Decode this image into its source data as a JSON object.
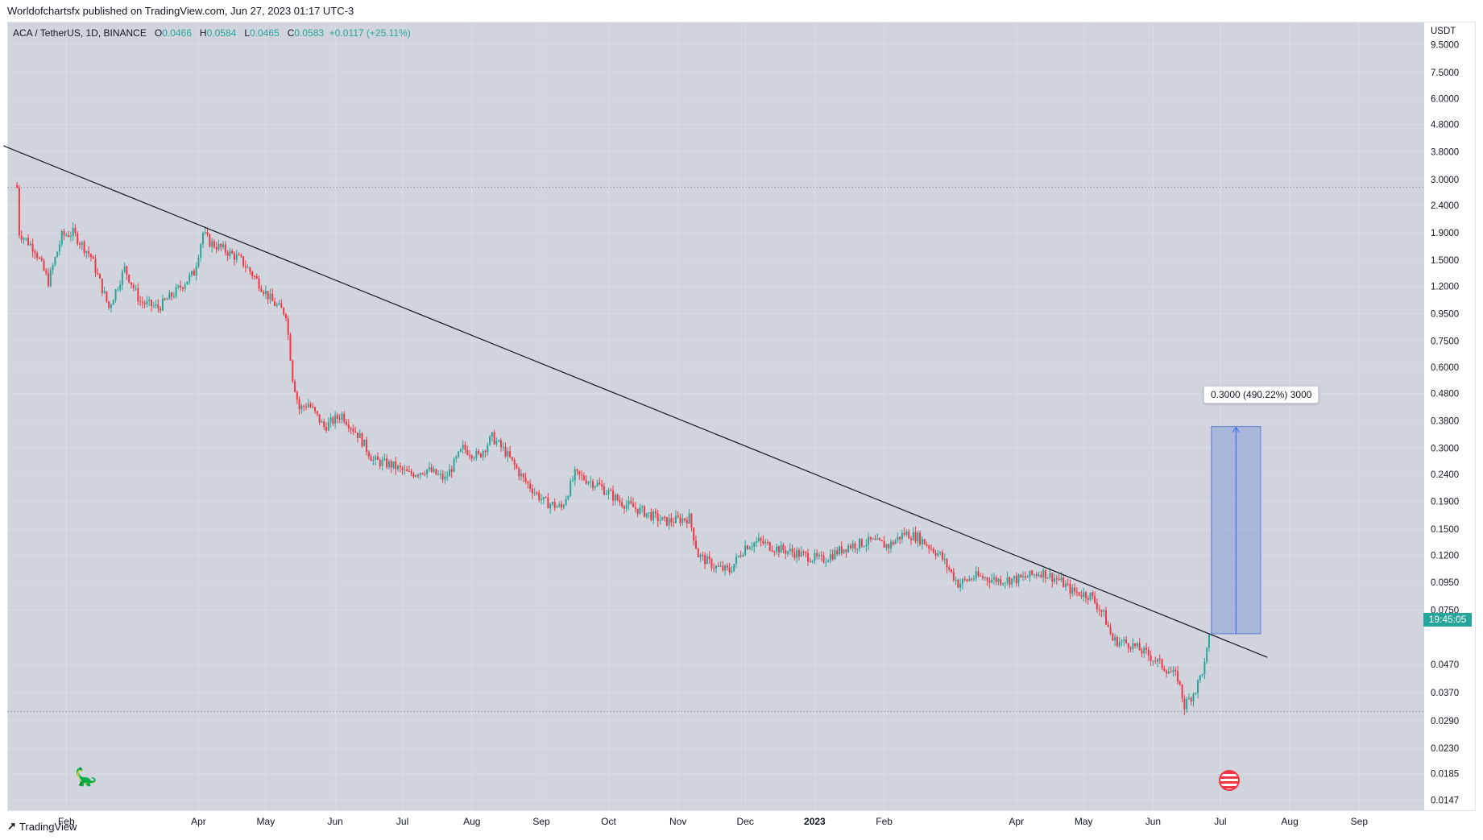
{
  "header": {
    "published_text": "Worldofchartsfx published on TradingView.com, Jun 27, 2023 01:17 UTC-3"
  },
  "symbol": {
    "name": "ACA / TetherUS, 1D, BINANCE",
    "open_label": "O",
    "open": "0.0466",
    "high_label": "H",
    "high": "0.0584",
    "low_label": "L",
    "low": "0.0465",
    "close_label": "C",
    "close": "0.0583",
    "change": "+0.0117 (+25.11%)"
  },
  "footer": {
    "brand": "TradingView"
  },
  "countdown": "19:45:05",
  "measure": {
    "label": "0.3000 (490.22%) 3000"
  },
  "colors": {
    "up": "#26a69a",
    "down": "#f23645",
    "trendline": "#131722",
    "measure_fill": "#5b7fd6",
    "grid": "#e0e3eb",
    "background": "#d1d4dc"
  },
  "chart_data": {
    "type": "candlestick",
    "title": "",
    "yscale": "log",
    "y_unit": "USDT",
    "y_ticks": [
      "9.5000",
      "7.5000",
      "6.0000",
      "4.8000",
      "3.8000",
      "3.0000",
      "2.4000",
      "1.9000",
      "1.5000",
      "1.2000",
      "0.9500",
      "0.7500",
      "0.6000",
      "0.4800",
      "0.3800",
      "0.3000",
      "0.2400",
      "0.1900",
      "0.1500",
      "0.1200",
      "0.0950",
      "0.0750",
      "0.0470",
      "0.0370",
      "0.0290",
      "0.0230",
      "0.0185",
      "0.0147"
    ],
    "x_ticks": [
      "Feb",
      "Apr",
      "May",
      "Jun",
      "Jul",
      "Aug",
      "Sep",
      "Oct",
      "Nov",
      "Dec",
      "2023",
      "Feb",
      "Apr",
      "May",
      "Jun",
      "Jul",
      "Aug",
      "Sep"
    ],
    "ylim": [
      0.0135,
      11.5
    ],
    "x_range": [
      "2022-01-06",
      "2023-09-30"
    ],
    "price_path": [
      [
        "2022-01-10",
        2.8
      ],
      [
        "2022-01-11",
        1.9
      ],
      [
        "2022-01-18",
        1.65
      ],
      [
        "2022-01-24",
        1.25
      ],
      [
        "2022-01-30",
        1.85
      ],
      [
        "2022-02-04",
        1.9
      ],
      [
        "2022-02-12",
        1.55
      ],
      [
        "2022-02-20",
        1.0
      ],
      [
        "2022-02-27",
        1.4
      ],
      [
        "2022-03-06",
        1.05
      ],
      [
        "2022-03-14",
        1.0
      ],
      [
        "2022-03-22",
        1.15
      ],
      [
        "2022-03-30",
        1.35
      ],
      [
        "2022-04-03",
        1.9
      ],
      [
        "2022-04-06",
        1.75
      ],
      [
        "2022-04-12",
        1.65
      ],
      [
        "2022-04-20",
        1.5
      ],
      [
        "2022-04-26",
        1.3
      ],
      [
        "2022-05-04",
        1.05
      ],
      [
        "2022-05-10",
        0.95
      ],
      [
        "2022-05-13",
        0.55
      ],
      [
        "2022-05-16",
        0.42
      ],
      [
        "2022-05-20",
        0.44
      ],
      [
        "2022-05-27",
        0.36
      ],
      [
        "2022-06-04",
        0.4
      ],
      [
        "2022-06-12",
        0.33
      ],
      [
        "2022-06-18",
        0.27
      ],
      [
        "2022-06-26",
        0.26
      ],
      [
        "2022-07-04",
        0.24
      ],
      [
        "2022-07-12",
        0.25
      ],
      [
        "2022-07-20",
        0.23
      ],
      [
        "2022-07-28",
        0.3
      ],
      [
        "2022-08-04",
        0.28
      ],
      [
        "2022-08-10",
        0.33
      ],
      [
        "2022-08-16",
        0.29
      ],
      [
        "2022-08-24",
        0.23
      ],
      [
        "2022-09-02",
        0.19
      ],
      [
        "2022-09-10",
        0.18
      ],
      [
        "2022-09-16",
        0.24
      ],
      [
        "2022-09-26",
        0.22
      ],
      [
        "2022-10-06",
        0.19
      ],
      [
        "2022-10-16",
        0.175
      ],
      [
        "2022-10-26",
        0.16
      ],
      [
        "2022-11-06",
        0.165
      ],
      [
        "2022-11-10",
        0.12
      ],
      [
        "2022-11-18",
        0.108
      ],
      [
        "2022-11-24",
        0.105
      ],
      [
        "2022-12-01",
        0.13
      ],
      [
        "2022-12-07",
        0.135
      ],
      [
        "2022-12-14",
        0.128
      ],
      [
        "2022-12-24",
        0.122
      ],
      [
        "2023-01-04",
        0.115
      ],
      [
        "2023-01-16",
        0.13
      ],
      [
        "2023-01-26",
        0.135
      ],
      [
        "2023-02-03",
        0.13
      ],
      [
        "2023-02-10",
        0.145
      ],
      [
        "2023-02-16",
        0.14
      ],
      [
        "2023-02-26",
        0.12
      ],
      [
        "2023-03-06",
        0.094
      ],
      [
        "2023-03-14",
        0.1
      ],
      [
        "2023-03-24",
        0.097
      ],
      [
        "2023-04-03",
        0.098
      ],
      [
        "2023-04-12",
        0.104
      ],
      [
        "2023-04-20",
        0.097
      ],
      [
        "2023-04-26",
        0.088
      ],
      [
        "2023-05-04",
        0.085
      ],
      [
        "2023-05-10",
        0.072
      ],
      [
        "2023-05-14",
        0.058
      ],
      [
        "2023-05-22",
        0.056
      ],
      [
        "2023-05-30",
        0.051
      ],
      [
        "2023-06-06",
        0.046
      ],
      [
        "2023-06-12",
        0.042
      ],
      [
        "2023-06-15",
        0.033
      ],
      [
        "2023-06-20",
        0.038
      ],
      [
        "2023-06-24",
        0.047
      ],
      [
        "2023-06-26",
        0.0583
      ]
    ],
    "trendline": [
      [
        "2022-01-04",
        4.0
      ],
      [
        "2023-07-22",
        0.05
      ]
    ],
    "horizontal_levels": [
      2.8,
      0.0315
    ],
    "measure_range": {
      "from_date": "2023-06-27",
      "to_date": "2023-07-19",
      "from_price": 0.0612,
      "to_price": 0.3612
    }
  }
}
